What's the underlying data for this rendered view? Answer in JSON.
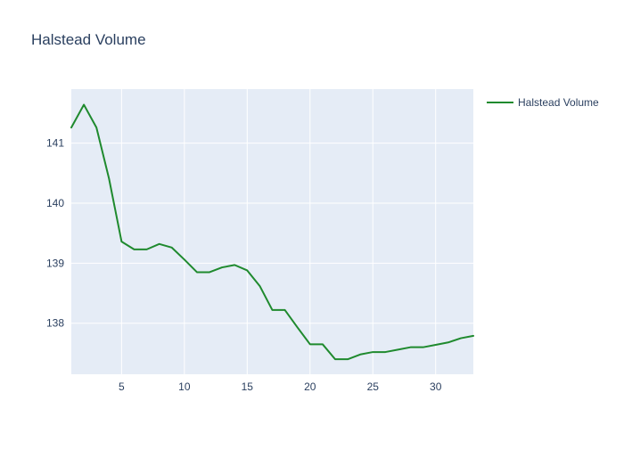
{
  "chart_data": {
    "type": "line",
    "title": "Halstead Volume",
    "xlabel": "",
    "ylabel": "",
    "xlim": [
      1,
      33
    ],
    "ylim": [
      137.15,
      141.9
    ],
    "x_ticks": [
      5,
      10,
      15,
      20,
      25,
      30
    ],
    "y_ticks": [
      138,
      139,
      140,
      141
    ],
    "grid": true,
    "legend_position": "top-right",
    "series": [
      {
        "name": "Halstead Volume",
        "color": "#1f8a2e",
        "x": [
          1,
          2,
          3,
          4,
          5,
          6,
          7,
          8,
          9,
          10,
          11,
          12,
          13,
          14,
          15,
          16,
          17,
          18,
          19,
          20,
          21,
          22,
          23,
          24,
          25,
          26,
          27,
          28,
          29,
          30,
          31,
          32,
          33
        ],
        "values": [
          141.26,
          141.64,
          141.26,
          140.41,
          139.36,
          139.23,
          139.23,
          139.32,
          139.26,
          139.06,
          138.85,
          138.85,
          138.93,
          138.97,
          138.88,
          138.62,
          138.22,
          138.22,
          137.93,
          137.65,
          137.65,
          137.4,
          137.4,
          137.48,
          137.52,
          137.52,
          137.56,
          137.6,
          137.6,
          137.64,
          137.68,
          137.75,
          137.79
        ]
      }
    ],
    "colors": {
      "plot_bg": "#e5ecf6",
      "grid": "#ffffff",
      "text": "#2a3f5f"
    }
  }
}
